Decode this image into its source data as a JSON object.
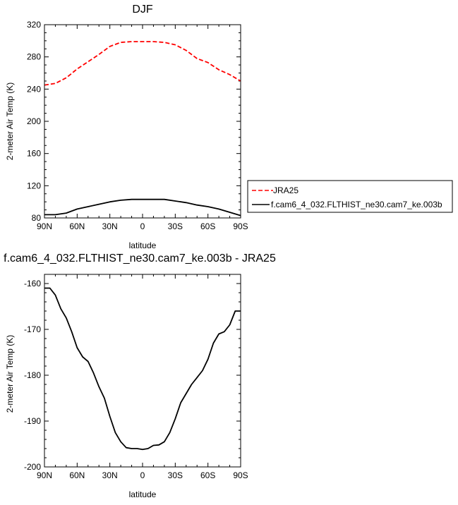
{
  "chart_data": [
    {
      "type": "line",
      "title": "DJF",
      "xlabel": "latitude",
      "ylabel": "2-meter Air Temp (K)",
      "xlim": [
        90,
        -90
      ],
      "ylim": [
        80,
        320
      ],
      "x_ticks": [
        "90N",
        "60N",
        "30N",
        "0",
        "30S",
        "60S",
        "90S"
      ],
      "x_tick_values": [
        90,
        60,
        30,
        0,
        -30,
        -60,
        -90
      ],
      "y_ticks": [
        "80",
        "120",
        "160",
        "200",
        "240",
        "280",
        "320"
      ],
      "y_tick_values": [
        80,
        120,
        160,
        200,
        240,
        280,
        320
      ],
      "legend_position": "right",
      "series": [
        {
          "name": "JRA25",
          "color": "#ff0000",
          "dash": "dashed",
          "x": [
            90,
            80,
            70,
            60,
            50,
            40,
            30,
            20,
            10,
            0,
            -10,
            -20,
            -30,
            -40,
            -50,
            -60,
            -70,
            -80,
            -90
          ],
          "values": [
            245,
            247,
            254,
            265,
            274,
            283,
            293,
            298,
            299,
            299,
            299,
            298,
            295,
            288,
            278,
            273,
            264,
            258,
            250
          ]
        },
        {
          "name": "f.cam6_4_032.FLTHIST_ne30.cam7_ke.003b",
          "color": "#000000",
          "dash": "solid",
          "x": [
            90,
            80,
            70,
            60,
            50,
            40,
            30,
            20,
            10,
            0,
            -10,
            -20,
            -30,
            -40,
            -50,
            -60,
            -70,
            -80,
            -90
          ],
          "values": [
            84,
            84,
            86,
            91,
            94,
            97,
            100,
            102,
            103,
            103,
            103,
            103,
            101,
            99,
            96,
            94,
            91,
            87,
            83
          ]
        }
      ]
    },
    {
      "type": "line",
      "title": "f.cam6_4_032.FLTHIST_ne30.cam7_ke.003b - JRA25",
      "xlabel": "latitude",
      "ylabel": "2-meter Air Temp (K)",
      "xlim": [
        90,
        -90
      ],
      "ylim": [
        -200,
        -158
      ],
      "x_ticks": [
        "90N",
        "60N",
        "30N",
        "0",
        "30S",
        "60S",
        "90S"
      ],
      "x_tick_values": [
        90,
        60,
        30,
        0,
        -30,
        -60,
        -90
      ],
      "y_ticks": [
        "-160",
        "-170",
        "-180",
        "-190",
        "-200"
      ],
      "y_tick_values": [
        -160,
        -170,
        -180,
        -190,
        -200
      ],
      "series": [
        {
          "color": "#000000",
          "x": [
            90,
            85,
            80,
            75,
            70,
            65,
            60,
            55,
            50,
            45,
            40,
            35,
            30,
            25,
            20,
            15,
            10,
            5,
            0,
            -5,
            -10,
            -15,
            -20,
            -25,
            -30,
            -35,
            -40,
            -45,
            -50,
            -55,
            -60,
            -65,
            -70,
            -75,
            -80,
            -85,
            -90
          ],
          "values": [
            -161,
            -161,
            -162.5,
            -165.5,
            -167.5,
            -170.5,
            -174,
            -176,
            -177,
            -179.5,
            -182.5,
            -185,
            -189,
            -192.5,
            -194.5,
            -195.8,
            -196,
            -196,
            -196.2,
            -196,
            -195.3,
            -195.2,
            -194.5,
            -192.5,
            -189.5,
            -186,
            -184,
            -182,
            -180.5,
            -179,
            -176.5,
            -173,
            -171,
            -170.5,
            -169,
            -166,
            -166
          ]
        }
      ]
    }
  ]
}
